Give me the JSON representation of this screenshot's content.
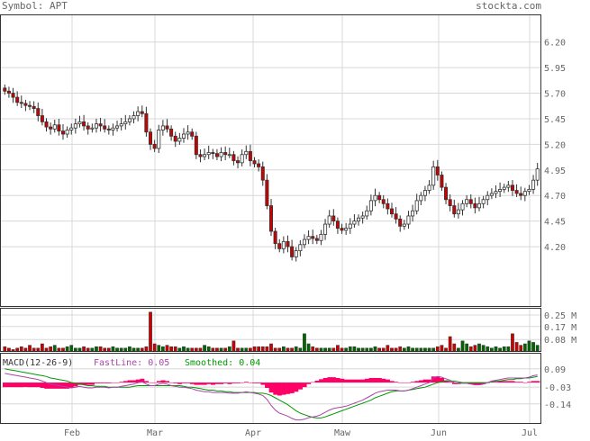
{
  "header": {
    "symbol_label": "Symbol: APT",
    "site_label": "stockta.com"
  },
  "colors": {
    "up_candle": "#ffffff",
    "down_candle": "#cc0000",
    "volume_up": "#006600",
    "volume_down": "#cc0000",
    "fast_line": "#aa44aa",
    "smoothed_line": "#009900",
    "histogram": "#ff0066",
    "grid": "#d8d8d8"
  },
  "chart_data": [
    {
      "type": "candlestick",
      "title": "Symbol: APT",
      "y_ticks": [
        4.2,
        4.45,
        4.7,
        4.95,
        5.2,
        5.45,
        5.7,
        5.95,
        6.2
      ],
      "ylim": [
        3.62,
        6.47
      ],
      "x_tick_labels": [
        "Feb",
        "Mar",
        "Apr",
        "Maw",
        "Jun",
        "Jul"
      ],
      "grid": true,
      "close": [
        5.72,
        5.7,
        5.66,
        5.61,
        5.6,
        5.58,
        5.57,
        5.55,
        5.48,
        5.42,
        5.37,
        5.35,
        5.39,
        5.33,
        5.3,
        5.34,
        5.36,
        5.4,
        5.42,
        5.38,
        5.35,
        5.36,
        5.4,
        5.38,
        5.35,
        5.34,
        5.36,
        5.38,
        5.4,
        5.42,
        5.45,
        5.48,
        5.52,
        5.5,
        5.32,
        5.2,
        5.16,
        5.34,
        5.38,
        5.35,
        5.28,
        5.23,
        5.26,
        5.3,
        5.32,
        5.28,
        5.1,
        5.08,
        5.1,
        5.12,
        5.11,
        5.08,
        5.12,
        5.1,
        5.1,
        5.04,
        5.02,
        5.1,
        5.13,
        5.04,
        5.01,
        4.98,
        4.85,
        4.6,
        4.35,
        4.23,
        4.18,
        4.25,
        4.2,
        4.1,
        4.16,
        4.22,
        4.27,
        4.3,
        4.28,
        4.26,
        4.32,
        4.42,
        4.5,
        4.45,
        4.38,
        4.36,
        4.38,
        4.42,
        4.45,
        4.48,
        4.5,
        4.55,
        4.65,
        4.7,
        4.66,
        4.62,
        4.57,
        4.52,
        4.47,
        4.4,
        4.42,
        4.5,
        4.55,
        4.65,
        4.7,
        4.75,
        4.8,
        4.98,
        4.9,
        4.78,
        4.66,
        4.6,
        4.52,
        4.56,
        4.62,
        4.66,
        4.62,
        4.58,
        4.62,
        4.66,
        4.7,
        4.72,
        4.74,
        4.76,
        4.78,
        4.8,
        4.75,
        4.72,
        4.7,
        4.74,
        4.76,
        4.85,
        4.96
      ],
      "volume_millions": [
        0.03,
        0.02,
        0.01,
        0.02,
        0.03,
        0.02,
        0.04,
        0.02,
        0.02,
        0.05,
        0.02,
        0.03,
        0.04,
        0.02,
        0.02,
        0.03,
        0.04,
        0.02,
        0.02,
        0.03,
        0.02,
        0.02,
        0.03,
        0.03,
        0.02,
        0.02,
        0.03,
        0.02,
        0.02,
        0.02,
        0.03,
        0.02,
        0.02,
        0.02,
        0.03,
        0.27,
        0.05,
        0.04,
        0.03,
        0.04,
        0.03,
        0.03,
        0.02,
        0.03,
        0.02,
        0.02,
        0.02,
        0.02,
        0.04,
        0.03,
        0.02,
        0.02,
        0.02,
        0.02,
        0.03,
        0.07,
        0.02,
        0.02,
        0.02,
        0.02,
        0.03,
        0.03,
        0.03,
        0.03,
        0.05,
        0.02,
        0.02,
        0.03,
        0.02,
        0.02,
        0.03,
        0.02,
        0.12,
        0.05,
        0.03,
        0.02,
        0.02,
        0.02,
        0.02,
        0.02,
        0.04,
        0.02,
        0.02,
        0.03,
        0.03,
        0.02,
        0.02,
        0.02,
        0.02,
        0.03,
        0.02,
        0.02,
        0.04,
        0.02,
        0.02,
        0.03,
        0.02,
        0.03,
        0.02,
        0.02,
        0.02,
        0.02,
        0.02,
        0.02,
        0.03,
        0.04,
        0.02,
        0.1,
        0.05,
        0.02,
        0.07,
        0.05,
        0.03,
        0.04,
        0.05,
        0.04,
        0.03,
        0.02,
        0.03,
        0.02,
        0.03,
        0.03,
        0.12,
        0.06,
        0.04,
        0.05,
        0.07,
        0.06,
        0.04
      ],
      "volume_ticks": [
        "0.25 M",
        "0.17 M",
        "0.08 M"
      ],
      "macd": {
        "label": "MACD(12-26-9)",
        "fast_label": "FastLine: 0.05",
        "smoothed_label": "Smoothed: 0.04",
        "y_ticks": [
          0.09,
          -0.03,
          -0.14
        ],
        "ylim": [
          -0.265,
          0.195
        ],
        "fast": [
          0.06,
          0.055,
          0.05,
          0.045,
          0.04,
          0.036,
          0.03,
          0.025,
          0.02,
          0.01,
          0.0,
          -0.01,
          -0.015,
          -0.02,
          -0.025,
          -0.03,
          -0.035,
          -0.03,
          -0.025,
          -0.03,
          -0.035,
          -0.035,
          -0.03,
          -0.03,
          -0.03,
          -0.035,
          -0.03,
          -0.03,
          -0.025,
          -0.02,
          -0.015,
          -0.01,
          0.0,
          0.005,
          -0.01,
          -0.02,
          -0.02,
          -0.01,
          -0.005,
          -0.01,
          -0.02,
          -0.025,
          -0.03,
          -0.03,
          -0.035,
          -0.04,
          -0.05,
          -0.055,
          -0.06,
          -0.06,
          -0.065,
          -0.065,
          -0.065,
          -0.065,
          -0.07,
          -0.07,
          -0.07,
          -0.065,
          -0.06,
          -0.065,
          -0.07,
          -0.075,
          -0.085,
          -0.11,
          -0.15,
          -0.18,
          -0.2,
          -0.21,
          -0.22,
          -0.235,
          -0.245,
          -0.245,
          -0.24,
          -0.23,
          -0.225,
          -0.22,
          -0.21,
          -0.195,
          -0.18,
          -0.17,
          -0.165,
          -0.16,
          -0.155,
          -0.145,
          -0.135,
          -0.125,
          -0.115,
          -0.1,
          -0.085,
          -0.07,
          -0.06,
          -0.055,
          -0.05,
          -0.05,
          -0.05,
          -0.055,
          -0.055,
          -0.05,
          -0.04,
          -0.03,
          -0.02,
          -0.01,
          0.0,
          0.03,
          0.04,
          0.035,
          0.025,
          0.015,
          0.0,
          -0.005,
          -0.005,
          -0.005,
          -0.01,
          -0.015,
          -0.015,
          -0.01,
          0.0,
          0.01,
          0.015,
          0.02,
          0.025,
          0.03,
          0.03,
          0.03,
          0.03,
          0.03,
          0.035,
          0.045,
          0.05
        ],
        "smoothed": [
          0.09,
          0.085,
          0.08,
          0.075,
          0.07,
          0.065,
          0.06,
          0.055,
          0.05,
          0.045,
          0.04,
          0.03,
          0.025,
          0.02,
          0.015,
          0.01,
          0.0,
          -0.005,
          -0.01,
          -0.015,
          -0.02,
          -0.02,
          -0.025,
          -0.025,
          -0.025,
          -0.03,
          -0.03,
          -0.03,
          -0.03,
          -0.03,
          -0.03,
          -0.025,
          -0.02,
          -0.02,
          -0.02,
          -0.02,
          -0.02,
          -0.02,
          -0.02,
          -0.02,
          -0.02,
          -0.02,
          -0.02,
          -0.025,
          -0.03,
          -0.03,
          -0.035,
          -0.04,
          -0.045,
          -0.05,
          -0.05,
          -0.055,
          -0.055,
          -0.06,
          -0.06,
          -0.065,
          -0.065,
          -0.065,
          -0.065,
          -0.065,
          -0.065,
          -0.07,
          -0.07,
          -0.075,
          -0.085,
          -0.1,
          -0.115,
          -0.13,
          -0.145,
          -0.165,
          -0.185,
          -0.2,
          -0.21,
          -0.22,
          -0.228,
          -0.232,
          -0.232,
          -0.225,
          -0.215,
          -0.205,
          -0.195,
          -0.185,
          -0.175,
          -0.165,
          -0.155,
          -0.145,
          -0.135,
          -0.125,
          -0.115,
          -0.1,
          -0.09,
          -0.08,
          -0.07,
          -0.06,
          -0.055,
          -0.055,
          -0.055,
          -0.05,
          -0.045,
          -0.04,
          -0.035,
          -0.03,
          -0.02,
          -0.01,
          0.0,
          0.005,
          0.01,
          0.01,
          0.01,
          0.005,
          0.0,
          0.0,
          0.0,
          0.0,
          0.0,
          0.0,
          0.0,
          0.005,
          0.01,
          0.01,
          0.015,
          0.02,
          0.02,
          0.025,
          0.025,
          0.03,
          0.03,
          0.035,
          0.04
        ]
      }
    }
  ]
}
